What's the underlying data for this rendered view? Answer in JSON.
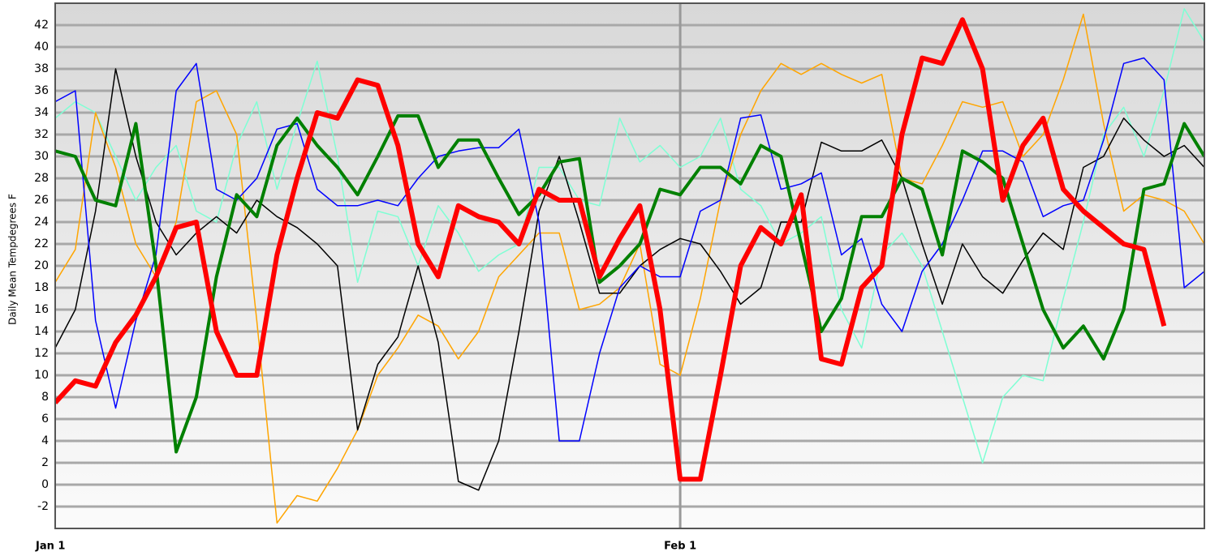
{
  "chart_data": {
    "type": "line",
    "y_label": "Daily Mean Tempdegrees F",
    "categories": [
      "Jan 1",
      null,
      null,
      null,
      null,
      null,
      null,
      null,
      null,
      null,
      null,
      null,
      null,
      null,
      null,
      null,
      null,
      null,
      null,
      null,
      null,
      null,
      null,
      null,
      null,
      null,
      null,
      null,
      null,
      null,
      null,
      "Feb 1",
      null,
      null,
      null,
      null,
      null,
      null,
      null,
      null,
      null,
      null,
      null,
      null,
      null,
      null,
      null,
      null,
      null,
      null,
      null,
      null,
      null,
      null,
      null,
      null,
      null,
      null
    ],
    "ylim": [
      -4,
      44
    ],
    "yticks": [
      -2,
      0,
      2,
      4,
      6,
      8,
      10,
      12,
      14,
      16,
      18,
      20,
      22,
      24,
      26,
      28,
      30,
      32,
      34,
      36,
      38,
      40,
      42
    ],
    "grid": true,
    "series": [
      {
        "color": "#7fffd4",
        "line_width": 1.5,
        "values": [
          33.5,
          35,
          34,
          30,
          26,
          29,
          31,
          25,
          24,
          31,
          35,
          27,
          33,
          38.7,
          30,
          18.5,
          25,
          24.5,
          20,
          25.5,
          23,
          19.5,
          21,
          22,
          29,
          29,
          26,
          25.5,
          33.5,
          29.5,
          31,
          29,
          30,
          33.5,
          27,
          25.5,
          22,
          23,
          24.5,
          16,
          12.5,
          21,
          23,
          20,
          14,
          8,
          2,
          8,
          10,
          9.5,
          17,
          24,
          32,
          34.5,
          30,
          36,
          43.5,
          40.5
        ]
      },
      {
        "color": "#ffa500",
        "line_width": 1.5,
        "values": [
          18.5,
          21.5,
          34,
          29,
          22,
          19,
          24,
          35,
          36,
          32,
          15,
          -3.5,
          -1,
          -1.5,
          1.5,
          5,
          10,
          12.5,
          15.5,
          14.5,
          11.5,
          14,
          19,
          21,
          23,
          23,
          16,
          16.5,
          18,
          22,
          11,
          10,
          17,
          26,
          32,
          36,
          38.5,
          37.5,
          38.5,
          37.5,
          36.7,
          37.5,
          28,
          27.5,
          31,
          35,
          34.5,
          35,
          30,
          32,
          37,
          43,
          33,
          25,
          26.5,
          26,
          25,
          22
        ]
      },
      {
        "color": "#000000",
        "line_width": 1.5,
        "values": [
          12.5,
          16,
          25,
          38,
          30,
          24,
          21,
          23,
          24.5,
          23,
          26,
          24.5,
          23.5,
          22,
          20,
          5,
          11,
          13.5,
          20,
          13,
          0.3,
          -0.5,
          4,
          14,
          25,
          30,
          24,
          17.5,
          17.5,
          20,
          21.5,
          22.5,
          22,
          19.5,
          16.5,
          18,
          24,
          24,
          31.3,
          30.5,
          30.5,
          31.5,
          28,
          22,
          16.5,
          22,
          19,
          17.5,
          20.5,
          23,
          21.5,
          29,
          30,
          33.5,
          31.5,
          30,
          31,
          29
        ]
      },
      {
        "color": "#0000ff",
        "line_width": 1.5,
        "values": [
          35,
          36,
          15,
          7,
          15,
          21,
          36,
          38.5,
          27,
          26,
          28,
          32.5,
          33,
          27,
          25.5,
          25.5,
          26,
          25.5,
          28,
          30,
          30.5,
          30.8,
          30.8,
          32.5,
          24,
          4,
          4,
          12,
          18,
          20,
          19,
          19,
          25,
          26,
          33.5,
          33.8,
          27,
          27.5,
          28.5,
          21,
          22.5,
          16.5,
          14,
          19.5,
          22,
          26,
          30.5,
          30.5,
          29.5,
          24.5,
          25.5,
          26,
          31.5,
          38.5,
          39,
          37,
          18,
          19.5
        ]
      },
      {
        "color": "#008000",
        "line_width": 4,
        "values": [
          30.5,
          30,
          26,
          25.5,
          33,
          20,
          3,
          8,
          19,
          26.5,
          24.5,
          31,
          33.5,
          31,
          29,
          26.5,
          30,
          33.7,
          33.7,
          29,
          31.5,
          31.5,
          28,
          24.7,
          26.5,
          29.5,
          29.8,
          18.5,
          20,
          22,
          27,
          26.5,
          29,
          29,
          27.5,
          31,
          30,
          22,
          14,
          17,
          24.5,
          24.5,
          28,
          27,
          21,
          30.5,
          29.5,
          28,
          22,
          16,
          12.5,
          14.5,
          11.5,
          16,
          27,
          27.5,
          33,
          30
        ]
      },
      {
        "color": "#ff0000",
        "line_width": 6,
        "values": [
          7.5,
          9.5,
          9,
          13,
          15.5,
          19,
          23.5,
          24,
          14,
          10,
          10,
          21,
          28,
          34,
          33.5,
          37,
          36.5,
          31,
          22,
          19,
          25.5,
          24.5,
          24,
          22,
          27,
          26,
          26,
          19,
          22.5,
          25.5,
          16,
          0.5,
          0.5,
          10,
          20,
          23.5,
          22,
          26.5,
          11.5,
          11,
          18,
          20,
          32,
          39,
          38.5,
          42.5,
          38,
          26,
          31,
          33.5,
          27,
          25,
          23.5,
          22,
          21.5,
          14.5,
          null,
          null
        ]
      }
    ]
  }
}
